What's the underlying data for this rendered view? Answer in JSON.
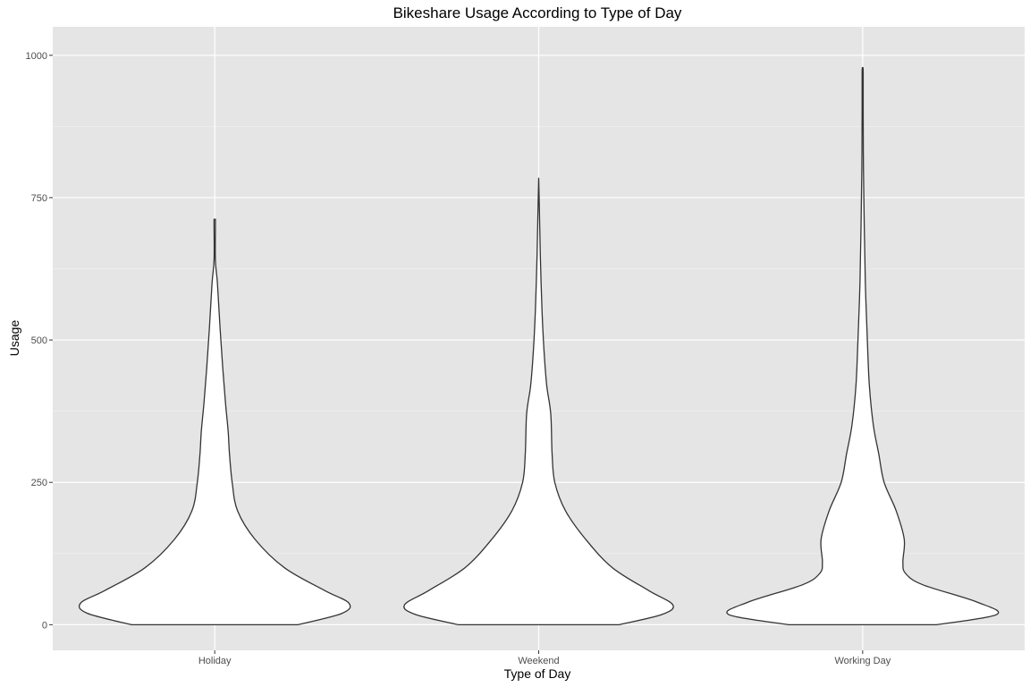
{
  "chart_data": {
    "type": "violin",
    "title": "Bikeshare Usage According to Type of Day",
    "xlabel": "Type of Day",
    "ylabel": "Usage",
    "categories": [
      "Holiday",
      "Weekend",
      "Working Day"
    ],
    "ylim": [
      -45,
      1050
    ],
    "yticks": [
      0,
      250,
      500,
      750,
      1000
    ],
    "grid": true,
    "colors": {
      "panel_background": "#e5e5e5",
      "grid_major": "#ffffff",
      "grid_minor": "#f2f2f2",
      "violin_fill": "#ffffff",
      "violin_outline": "#333333"
    },
    "violins": [
      {
        "category": "Holiday",
        "max_usage": 712,
        "profile": [
          [
            0,
            0.62
          ],
          [
            20,
            0.95
          ],
          [
            38,
            1.0
          ],
          [
            60,
            0.82
          ],
          [
            100,
            0.52
          ],
          [
            150,
            0.3
          ],
          [
            200,
            0.17
          ],
          [
            250,
            0.13
          ],
          [
            300,
            0.11
          ],
          [
            340,
            0.1
          ],
          [
            390,
            0.08
          ],
          [
            450,
            0.06
          ],
          [
            520,
            0.04
          ],
          [
            600,
            0.02
          ],
          [
            640,
            0.005
          ],
          [
            700,
            0.005
          ],
          [
            712,
            0.005
          ]
        ]
      },
      {
        "category": "Weekend",
        "max_usage": 784,
        "profile": [
          [
            0,
            0.6
          ],
          [
            18,
            0.92
          ],
          [
            35,
            1.0
          ],
          [
            60,
            0.82
          ],
          [
            100,
            0.55
          ],
          [
            150,
            0.35
          ],
          [
            200,
            0.2
          ],
          [
            250,
            0.12
          ],
          [
            300,
            0.1
          ],
          [
            370,
            0.09
          ],
          [
            420,
            0.06
          ],
          [
            480,
            0.04
          ],
          [
            550,
            0.025
          ],
          [
            650,
            0.012
          ],
          [
            720,
            0.006
          ],
          [
            784,
            0.0
          ]
        ]
      },
      {
        "category": "Working Day",
        "max_usage": 978,
        "profile": [
          [
            0,
            0.55
          ],
          [
            18,
            1.0
          ],
          [
            40,
            0.85
          ],
          [
            70,
            0.45
          ],
          [
            90,
            0.32
          ],
          [
            110,
            0.3
          ],
          [
            150,
            0.31
          ],
          [
            200,
            0.25
          ],
          [
            250,
            0.16
          ],
          [
            300,
            0.12
          ],
          [
            350,
            0.08
          ],
          [
            420,
            0.05
          ],
          [
            500,
            0.035
          ],
          [
            600,
            0.02
          ],
          [
            700,
            0.012
          ],
          [
            800,
            0.006
          ],
          [
            900,
            0.004
          ],
          [
            970,
            0.004
          ],
          [
            978,
            0.0
          ]
        ]
      }
    ]
  }
}
